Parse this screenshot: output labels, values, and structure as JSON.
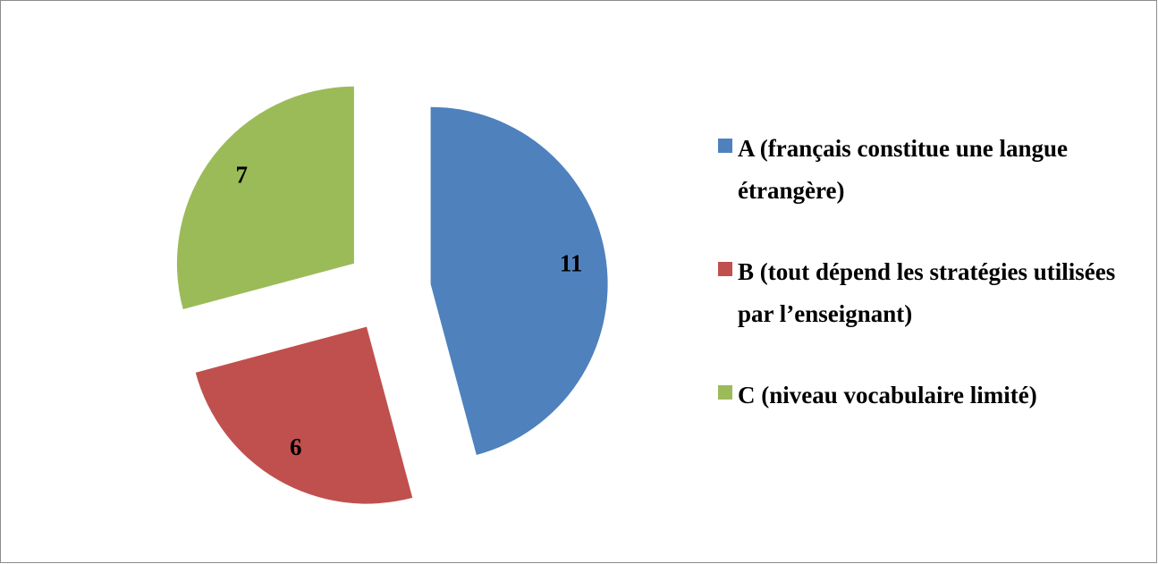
{
  "chart_data": {
    "type": "pie",
    "categories": [
      "A (français constitue une langue étrangère)",
      "B (tout dépend les stratégies utilisées  par l’enseignant)",
      "C (niveau vocabulaire limité)"
    ],
    "values": [
      11,
      6,
      7
    ],
    "colors": [
      "#4f81bd",
      "#c0504d",
      "#9bbb59"
    ],
    "exploded": true,
    "legend": "right"
  }
}
